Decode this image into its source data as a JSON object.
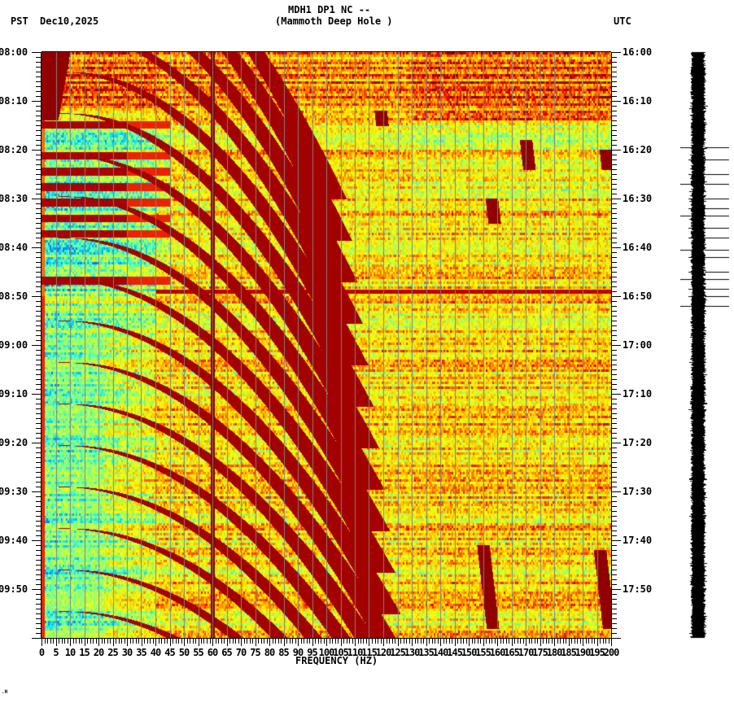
{
  "header": {
    "title_line1": "MDH1 DP1 NC --",
    "title_line2": "(Mammoth Deep Hole )",
    "tz_left": "PST",
    "date": "Dec10,2025",
    "tz_right": "UTC"
  },
  "footer": {
    "corner_mark": ".H"
  },
  "colors": {
    "background": "#ffffff",
    "axis": "#000000",
    "gridline": "#808080",
    "colormap": [
      "#0000c8",
      "#0080ff",
      "#00e0ff",
      "#60ffb0",
      "#c0ff40",
      "#ffff00",
      "#ffc000",
      "#ff6000",
      "#e00000",
      "#800000"
    ]
  },
  "chart_data": {
    "type": "heatmap",
    "title": "MDH1 DP1 NC -- (Mammoth Deep Hole )",
    "xlabel": "FREQUENCY (HZ)",
    "ylabel_left": "PST",
    "ylabel_right": "UTC",
    "date": "Dec10,2025",
    "xlim": [
      0,
      200
    ],
    "x_major_step": 5,
    "x_minor_step": 1,
    "x_ticks": [
      0,
      5,
      10,
      15,
      20,
      25,
      30,
      35,
      40,
      45,
      50,
      55,
      60,
      65,
      70,
      75,
      80,
      85,
      90,
      95,
      100,
      105,
      110,
      115,
      120,
      125,
      130,
      135,
      140,
      145,
      150,
      155,
      160,
      165,
      170,
      175,
      180,
      185,
      190,
      195,
      200
    ],
    "y_ticks_left": [
      "08:00",
      "08:10",
      "08:20",
      "08:30",
      "08:40",
      "08:50",
      "09:00",
      "09:10",
      "09:20",
      "09:30",
      "09:40",
      "09:50"
    ],
    "y_ticks_right": [
      "16:00",
      "16:10",
      "16:20",
      "16:30",
      "16:40",
      "16:50",
      "17:00",
      "17:10",
      "17:20",
      "17:30",
      "17:40",
      "17:50"
    ],
    "time_span_minutes": 120,
    "minor_tick_minutes": 1,
    "grid": true,
    "features": {
      "persistent_line_hz": 60,
      "broadband_event_time_pst": "08:49",
      "low_freq_quiet_band_hz": [
        0,
        40
      ],
      "quiet_interval_pst": [
        "09:00",
        "10:00"
      ],
      "noisy_upper_rows_pst": [
        "08:00",
        "08:12"
      ],
      "gliding_harmonic_streaks": "sweeping tremor harmonics curving from low to high frequency, repeating every ~6-10 minutes",
      "localized_bursts": [
        {
          "freq_hz": 119,
          "time_pst": "08:12-08:15"
        },
        {
          "freq_hz": 158,
          "time_pst": "08:30-08:35"
        },
        {
          "freq_hz": 170,
          "time_pst": "08:18-08:24"
        },
        {
          "freq_hz": 198,
          "time_pst": "08:20-08:24"
        },
        {
          "freq_hz": 155,
          "time_pst": "09:41-09:58"
        },
        {
          "freq_hz": 196,
          "time_pst": "09:42-09:58"
        }
      ]
    }
  },
  "seismogram": {
    "label": "trace",
    "spike_times_min": [
      19.5,
      22,
      25,
      27,
      30,
      32,
      33.5,
      36,
      38,
      40.5,
      42,
      45,
      46.5,
      48.5,
      50,
      52
    ]
  }
}
